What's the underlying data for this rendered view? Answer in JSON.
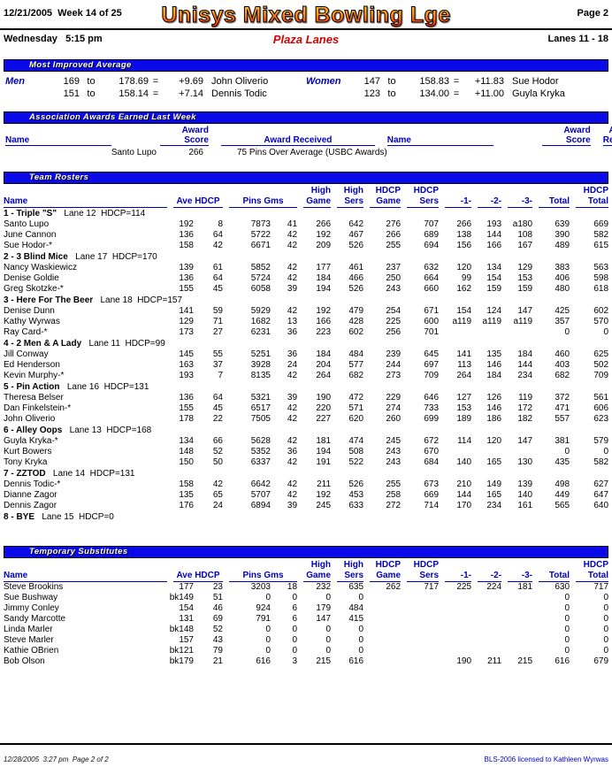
{
  "header": {
    "date": "12/21/2005",
    "week": "  Week 14 of 25",
    "title": "Unisys Mixed Bowling Lge",
    "page": "Page 2",
    "day": "Wednesday   5:15 pm",
    "venue": "Plaza Lanes",
    "lanes": "Lanes 11 - 18"
  },
  "most_improved": {
    "title": "Most Improved Average",
    "men_label": "Men",
    "women_label": "Women",
    "to_word": "to",
    "eq_sign": "=",
    "men": [
      {
        "from": "169",
        "to": "178.69",
        "gain": "+9.69",
        "name": "John Oliverio"
      },
      {
        "from": "151",
        "to": "158.14",
        "gain": "+7.14",
        "name": "Dennis Todic"
      }
    ],
    "women": [
      {
        "from": "147",
        "to": "158.83",
        "gain": "+11.83",
        "name": "Sue Hodor"
      },
      {
        "from": "123",
        "to": "134.00",
        "gain": "+11.00",
        "name": "Guyla Kryka"
      }
    ]
  },
  "association_awards": {
    "title": "Association Awards Earned Last Week",
    "col_name": "Name",
    "col_award": "Award",
    "col_score": "Score",
    "col_received": "Award Received",
    "entries": [
      {
        "name": "Santo Lupo",
        "score": "266",
        "received": "75 Pins Over Average (USBC Awards)"
      }
    ]
  },
  "table_headers": {
    "name": "Name",
    "ave_hdcp": "Ave HDCP",
    "pins_gms": "Pins  Gms",
    "high": "High",
    "game": "Game",
    "sers": "Sers",
    "hdcp": "HDCP",
    "g1": "-1-",
    "g2": "-2-",
    "g3": "-3-",
    "total": "Total"
  },
  "team_rosters": {
    "title": "Team Rosters",
    "teams": [
      {
        "name": "1 - Triple \"S\"",
        "info": "Lane 12  HDCP=114",
        "players": [
          {
            "name": "Santo Lupo",
            "cells": [
              "192",
              "8",
              "7873",
              "41",
              "266",
              "642",
              "276",
              "707",
              "266",
              "193",
              "a180",
              "639",
              "669"
            ]
          },
          {
            "name": "June Cannon",
            "cells": [
              "136",
              "64",
              "5722",
              "42",
              "192",
              "467",
              "266",
              "689",
              "138",
              "144",
              "108",
              "390",
              "582"
            ]
          },
          {
            "name": "Sue Hodor-*",
            "cells": [
              "158",
              "42",
              "6671",
              "42",
              "209",
              "526",
              "255",
              "694",
              "156",
              "166",
              "167",
              "489",
              "615"
            ]
          }
        ]
      },
      {
        "name": "2 - 3 Blind Mice",
        "info": "Lane 17  HDCP=170",
        "players": [
          {
            "name": "Nancy Waskiewicz",
            "cells": [
              "139",
              "61",
              "5852",
              "42",
              "177",
              "461",
              "237",
              "632",
              "120",
              "134",
              "129",
              "383",
              "563"
            ]
          },
          {
            "name": "Denise Goldie",
            "cells": [
              "136",
              "64",
              "5724",
              "42",
              "184",
              "466",
              "250",
              "664",
              "99",
              "154",
              "153",
              "406",
              "598"
            ]
          },
          {
            "name": "Greg Skotzke-*",
            "cells": [
              "155",
              "45",
              "6058",
              "39",
              "194",
              "526",
              "243",
              "660",
              "162",
              "159",
              "159",
              "480",
              "618"
            ]
          }
        ]
      },
      {
        "name": "3 - Here For The Beer",
        "info": "Lane 18  HDCP=157",
        "players": [
          {
            "name": "Denise Dunn",
            "cells": [
              "141",
              "59",
              "5929",
              "42",
              "192",
              "479",
              "254",
              "671",
              "154",
              "124",
              "147",
              "425",
              "602"
            ]
          },
          {
            "name": "Kathy Wyrwas",
            "cells": [
              "129",
              "71",
              "1682",
              "13",
              "166",
              "428",
              "225",
              "600",
              "a119",
              "a119",
              "a119",
              "357",
              "570"
            ]
          },
          {
            "name": "Ray Card-*",
            "cells": [
              "173",
              "27",
              "6231",
              "36",
              "223",
              "602",
              "256",
              "701",
              "",
              "",
              "",
              "0",
              "0"
            ]
          }
        ]
      },
      {
        "name": "4 - 2 Men & A Lady",
        "info": "Lane 11  HDCP=99",
        "players": [
          {
            "name": "Jill Conway",
            "cells": [
              "145",
              "55",
              "5251",
              "36",
              "184",
              "484",
              "239",
              "645",
              "141",
              "135",
              "184",
              "460",
              "625"
            ]
          },
          {
            "name": "Ed Henderson",
            "cells": [
              "163",
              "37",
              "3928",
              "24",
              "204",
              "577",
              "244",
              "697",
              "113",
              "146",
              "144",
              "403",
              "502"
            ]
          },
          {
            "name": "Kevin Murphy-*",
            "cells": [
              "193",
              "7",
              "8135",
              "42",
              "264",
              "682",
              "273",
              "709",
              "264",
              "184",
              "234",
              "682",
              "709"
            ]
          }
        ]
      },
      {
        "name": "5 - Pin Action",
        "info": "Lane 16  HDCP=131",
        "players": [
          {
            "name": "Theresa Belser",
            "cells": [
              "136",
              "64",
              "5321",
              "39",
              "190",
              "472",
              "229",
              "646",
              "127",
              "126",
              "119",
              "372",
              "561"
            ]
          },
          {
            "name": "Dan Finkelstein-*",
            "cells": [
              "155",
              "45",
              "6517",
              "42",
              "220",
              "571",
              "274",
              "733",
              "153",
              "146",
              "172",
              "471",
              "606"
            ]
          },
          {
            "name": "John Oliverio",
            "cells": [
              "178",
              "22",
              "7505",
              "42",
              "227",
              "620",
              "260",
              "699",
              "189",
              "186",
              "182",
              "557",
              "623"
            ]
          }
        ]
      },
      {
        "name": "6 - Alley Oops",
        "info": "Lane 13  HDCP=168",
        "players": [
          {
            "name": "Guyla Kryka-*",
            "cells": [
              "134",
              "66",
              "5628",
              "42",
              "181",
              "474",
              "245",
              "672",
              "114",
              "120",
              "147",
              "381",
              "579"
            ]
          },
          {
            "name": "Kurt Bowers",
            "cells": [
              "148",
              "52",
              "5352",
              "36",
              "194",
              "508",
              "243",
              "670",
              "",
              "",
              "",
              "0",
              "0"
            ]
          },
          {
            "name": "Tony Kryka",
            "cells": [
              "150",
              "50",
              "6337",
              "42",
              "191",
              "522",
              "243",
              "684",
              "140",
              "165",
              "130",
              "435",
              "582"
            ]
          }
        ]
      },
      {
        "name": "7 - ZZTOD",
        "info": "Lane 14  HDCP=131",
        "players": [
          {
            "name": "Dennis Todic-*",
            "cells": [
              "158",
              "42",
              "6642",
              "42",
              "211",
              "526",
              "255",
              "673",
              "210",
              "149",
              "139",
              "498",
              "627"
            ]
          },
          {
            "name": "Dianne Zagor",
            "cells": [
              "135",
              "65",
              "5707",
              "42",
              "192",
              "453",
              "258",
              "669",
              "144",
              "165",
              "140",
              "449",
              "647"
            ]
          },
          {
            "name": "Dennis Zagor",
            "cells": [
              "176",
              "24",
              "6894",
              "39",
              "245",
              "633",
              "272",
              "714",
              "170",
              "234",
              "161",
              "565",
              "640"
            ]
          }
        ]
      },
      {
        "name": "8 - BYE",
        "info": "Lane 15  HDCP=0",
        "players": []
      }
    ]
  },
  "temporary_substitutes": {
    "title": "Temporary Substitutes",
    "players": [
      {
        "name": "Steve Brookins",
        "cells": [
          "177",
          "23",
          "3203",
          "18",
          "232",
          "635",
          "262",
          "717",
          "225",
          "224",
          "181",
          "630",
          "717"
        ]
      },
      {
        "name": "Sue Bushway",
        "cells": [
          "bk149",
          "51",
          "0",
          "0",
          "0",
          "0",
          "",
          "",
          "",
          "",
          "",
          "0",
          "0"
        ]
      },
      {
        "name": "Jimmy Conley",
        "cells": [
          "154",
          "46",
          "924",
          "6",
          "179",
          "484",
          "",
          "",
          "",
          "",
          "",
          "0",
          "0"
        ]
      },
      {
        "name": "Sandy Marcotte",
        "cells": [
          "131",
          "69",
          "791",
          "6",
          "147",
          "415",
          "",
          "",
          "",
          "",
          "",
          "0",
          "0"
        ]
      },
      {
        "name": "Linda Marler",
        "cells": [
          "bk148",
          "52",
          "0",
          "0",
          "0",
          "0",
          "",
          "",
          "",
          "",
          "",
          "0",
          "0"
        ]
      },
      {
        "name": "Steve Marler",
        "cells": [
          "157",
          "43",
          "0",
          "0",
          "0",
          "0",
          "",
          "",
          "",
          "",
          "",
          "0",
          "0"
        ]
      },
      {
        "name": "Kathie OBrien",
        "cells": [
          "bk121",
          "79",
          "0",
          "0",
          "0",
          "0",
          "",
          "",
          "",
          "",
          "",
          "0",
          "0"
        ]
      },
      {
        "name": "Bob Olson",
        "cells": [
          "bk179",
          "21",
          "616",
          "3",
          "215",
          "616",
          "",
          "",
          "190",
          "211",
          "215",
          "616",
          "679"
        ]
      }
    ]
  },
  "footer": {
    "left": "12/28/2005  3:27 pm  Page 2 of 2",
    "right": "BLS-2006 licensed to Kathleen Wyrwas"
  }
}
